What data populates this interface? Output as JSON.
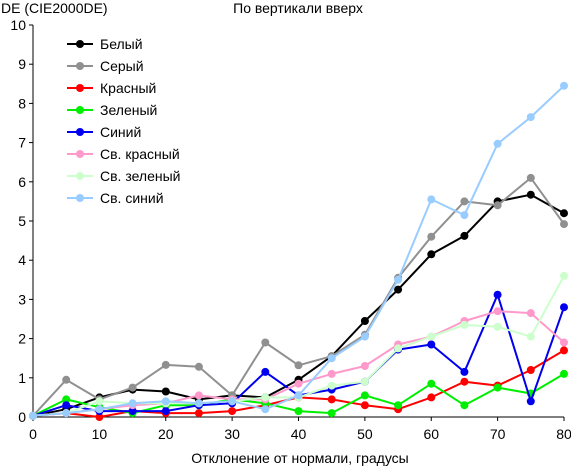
{
  "chart_data": {
    "type": "line",
    "title": "По вертикали вверх",
    "ylabel": "DE (CIE2000DE)",
    "xlabel": "Отклонение от нормали, градусы",
    "xlim": [
      0,
      80
    ],
    "ylim": [
      0,
      10
    ],
    "x_ticks": [
      0,
      10,
      20,
      30,
      40,
      50,
      60,
      70,
      80
    ],
    "y_ticks": [
      0,
      1,
      2,
      3,
      4,
      5,
      6,
      7,
      8,
      9,
      10
    ],
    "grid": false,
    "legend_position": "top-left",
    "x": [
      0,
      5,
      10,
      15,
      20,
      25,
      30,
      35,
      40,
      45,
      50,
      55,
      60,
      65,
      70,
      75,
      80
    ],
    "series": [
      {
        "name": "Белый",
        "color": "#000000",
        "values": [
          0.03,
          0.2,
          0.5,
          0.7,
          0.65,
          0.45,
          0.55,
          0.5,
          0.95,
          1.55,
          2.45,
          3.25,
          4.15,
          4.62,
          5.5,
          5.67,
          5.2
        ]
      },
      {
        "name": "Серый",
        "color": "#909090",
        "values": [
          0.03,
          0.95,
          0.45,
          0.75,
          1.33,
          1.28,
          0.55,
          1.9,
          1.32,
          1.55,
          2.1,
          3.55,
          4.6,
          5.5,
          5.4,
          6.1,
          4.92
        ]
      },
      {
        "name": "Красный",
        "color": "#ff0000",
        "values": [
          0.03,
          0.1,
          0.0,
          0.15,
          0.1,
          0.1,
          0.15,
          0.3,
          0.5,
          0.45,
          0.3,
          0.2,
          0.5,
          0.9,
          0.8,
          1.2,
          1.7
        ]
      },
      {
        "name": "Зеленый",
        "color": "#00ee00",
        "values": [
          0.03,
          0.45,
          0.25,
          0.1,
          0.3,
          0.3,
          0.45,
          0.35,
          0.15,
          0.1,
          0.55,
          0.3,
          0.85,
          0.3,
          0.75,
          0.6,
          1.1
        ]
      },
      {
        "name": "Синий",
        "color": "#0000ee",
        "values": [
          0.03,
          0.3,
          0.15,
          0.15,
          0.15,
          0.3,
          0.35,
          1.15,
          0.55,
          0.7,
          0.9,
          1.72,
          1.85,
          1.15,
          3.12,
          0.4,
          2.8
        ]
      },
      {
        "name": "Св. красный",
        "color": "#ff99cc",
        "values": [
          0.03,
          0.1,
          0.2,
          0.3,
          0.35,
          0.55,
          0.45,
          0.45,
          0.85,
          1.1,
          1.3,
          1.85,
          2.05,
          2.45,
          2.7,
          2.65,
          1.9
        ]
      },
      {
        "name": "Св. зеленый",
        "color": "#ccffcc",
        "values": [
          0.03,
          0.1,
          0.4,
          0.35,
          0.35,
          0.35,
          0.4,
          0.5,
          0.5,
          0.8,
          0.9,
          1.75,
          2.05,
          2.35,
          2.3,
          2.05,
          3.6
        ]
      },
      {
        "name": "Св. синий",
        "color": "#99ccff",
        "values": [
          0.03,
          0.1,
          0.2,
          0.35,
          0.4,
          0.35,
          0.4,
          0.2,
          0.55,
          1.5,
          2.05,
          3.5,
          5.55,
          5.15,
          6.97,
          7.65,
          8.45
        ]
      }
    ]
  }
}
